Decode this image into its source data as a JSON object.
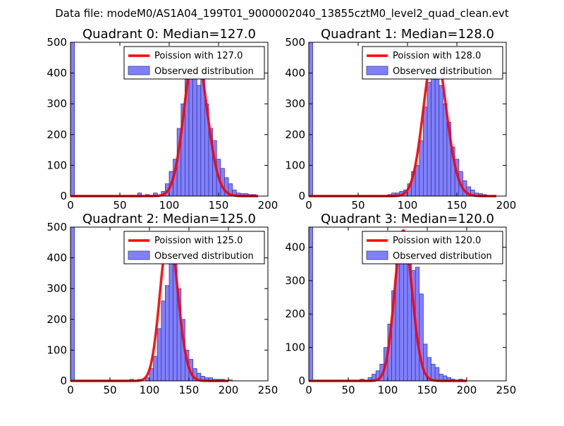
{
  "figure": {
    "suptitle": "Data file: modeM0/AS1A04_199T01_9000002040_13855cztM0_level2_quad_clean.evt"
  },
  "colors": {
    "bar_fill": "#8080ff",
    "bar_stroke": "#3a3a9a",
    "poisson_line": "#ff0000",
    "axis": "#000000"
  },
  "chart_data": [
    {
      "type": "bar",
      "title": "Quadrant 0: Median=127.0",
      "xlim": [
        0,
        200
      ],
      "ylim": [
        0,
        500
      ],
      "xticks": [
        0,
        50,
        100,
        150,
        200
      ],
      "yticks": [
        0,
        100,
        200,
        300,
        400,
        500
      ],
      "bin_width": 4,
      "bins": [
        [
          0,
          500
        ],
        [
          60,
          2
        ],
        [
          68,
          10
        ],
        [
          76,
          5
        ],
        [
          84,
          10
        ],
        [
          92,
          15
        ],
        [
          96,
          40
        ],
        [
          100,
          80
        ],
        [
          104,
          120
        ],
        [
          108,
          220
        ],
        [
          112,
          300
        ],
        [
          116,
          380
        ],
        [
          120,
          400
        ],
        [
          124,
          480
        ],
        [
          128,
          360
        ],
        [
          132,
          400
        ],
        [
          136,
          300
        ],
        [
          140,
          220
        ],
        [
          144,
          180
        ],
        [
          148,
          120
        ],
        [
          152,
          90
        ],
        [
          156,
          60
        ],
        [
          160,
          40
        ],
        [
          164,
          20
        ],
        [
          168,
          10
        ],
        [
          172,
          8
        ],
        [
          176,
          8
        ],
        [
          180,
          5
        ],
        [
          184,
          5
        ]
      ],
      "poisson": {
        "label": "Poission with 127.0",
        "mean": 127.0,
        "peak": 480,
        "range": [
          0,
          190
        ]
      },
      "legend": {
        "line_label": "Poission with 127.0",
        "bar_label": "Observed distribution",
        "loc": "upper right"
      }
    },
    {
      "type": "bar",
      "title": "Quadrant 1: Median=128.0",
      "xlim": [
        0,
        200
      ],
      "ylim": [
        0,
        500
      ],
      "xticks": [
        0,
        50,
        100,
        150,
        200
      ],
      "yticks": [
        0,
        100,
        200,
        300,
        400,
        500
      ],
      "bin_width": 4,
      "bins": [
        [
          0,
          500
        ],
        [
          80,
          5
        ],
        [
          84,
          10
        ],
        [
          88,
          10
        ],
        [
          92,
          15
        ],
        [
          96,
          20
        ],
        [
          100,
          40
        ],
        [
          104,
          80
        ],
        [
          108,
          100
        ],
        [
          112,
          180
        ],
        [
          116,
          290
        ],
        [
          120,
          370
        ],
        [
          124,
          430
        ],
        [
          128,
          480
        ],
        [
          132,
          360
        ],
        [
          136,
          300
        ],
        [
          140,
          240
        ],
        [
          144,
          160
        ],
        [
          148,
          120
        ],
        [
          152,
          80
        ],
        [
          156,
          50
        ],
        [
          160,
          30
        ],
        [
          164,
          20
        ],
        [
          168,
          10
        ],
        [
          172,
          8
        ],
        [
          176,
          5
        ]
      ],
      "poisson": {
        "label": "Poission with 128.0",
        "mean": 128.0,
        "peak": 480,
        "range": [
          0,
          190
        ]
      },
      "legend": {
        "line_label": "Poission with 128.0",
        "bar_label": "Observed distribution",
        "loc": "upper right"
      }
    },
    {
      "type": "bar",
      "title": "Quadrant 2: Median=125.0",
      "xlim": [
        0,
        250
      ],
      "ylim": [
        0,
        500
      ],
      "xticks": [
        0,
        50,
        100,
        150,
        200,
        250
      ],
      "yticks": [
        0,
        100,
        200,
        300,
        400,
        500
      ],
      "bin_width": 5,
      "bins": [
        [
          0,
          500
        ],
        [
          75,
          5
        ],
        [
          85,
          5
        ],
        [
          95,
          10
        ],
        [
          100,
          40
        ],
        [
          105,
          80
        ],
        [
          110,
          170
        ],
        [
          115,
          260
        ],
        [
          120,
          310
        ],
        [
          125,
          470
        ],
        [
          130,
          400
        ],
        [
          135,
          300
        ],
        [
          140,
          200
        ],
        [
          145,
          100
        ],
        [
          150,
          70
        ],
        [
          155,
          40
        ],
        [
          160,
          25
        ],
        [
          165,
          15
        ],
        [
          170,
          10
        ],
        [
          175,
          10
        ],
        [
          180,
          5
        ],
        [
          185,
          5
        ],
        [
          190,
          5
        ],
        [
          200,
          3
        ]
      ],
      "poisson": {
        "label": "Poission with 125.0",
        "mean": 125.0,
        "peak": 480,
        "range": [
          0,
          200
        ]
      },
      "legend": {
        "line_label": "Poission with 125.0",
        "bar_label": "Observed distribution",
        "loc": "upper right"
      }
    },
    {
      "type": "bar",
      "title": "Quadrant 3: Median=120.0",
      "xlim": [
        0,
        250
      ],
      "ylim": [
        0,
        460
      ],
      "xticks": [
        0,
        50,
        100,
        150,
        200,
        250
      ],
      "yticks": [
        0,
        100,
        200,
        300,
        400
      ],
      "bin_width": 5,
      "bins": [
        [
          0,
          470
        ],
        [
          65,
          5
        ],
        [
          75,
          10
        ],
        [
          80,
          20
        ],
        [
          85,
          30
        ],
        [
          90,
          50
        ],
        [
          95,
          100
        ],
        [
          100,
          170
        ],
        [
          105,
          270
        ],
        [
          110,
          350
        ],
        [
          115,
          400
        ],
        [
          120,
          440
        ],
        [
          125,
          360
        ],
        [
          130,
          330
        ],
        [
          135,
          340
        ],
        [
          140,
          260
        ],
        [
          145,
          110
        ],
        [
          150,
          70
        ],
        [
          155,
          50
        ],
        [
          160,
          40
        ],
        [
          165,
          20
        ],
        [
          170,
          15
        ],
        [
          175,
          10
        ],
        [
          180,
          5
        ],
        [
          190,
          5
        ]
      ],
      "poisson": {
        "label": "Poission with 120.0",
        "mean": 120.0,
        "peak": 450,
        "range": [
          0,
          200
        ]
      },
      "legend": {
        "line_label": "Poission with 120.0",
        "bar_label": "Observed distribution",
        "loc": "upper right"
      }
    }
  ]
}
